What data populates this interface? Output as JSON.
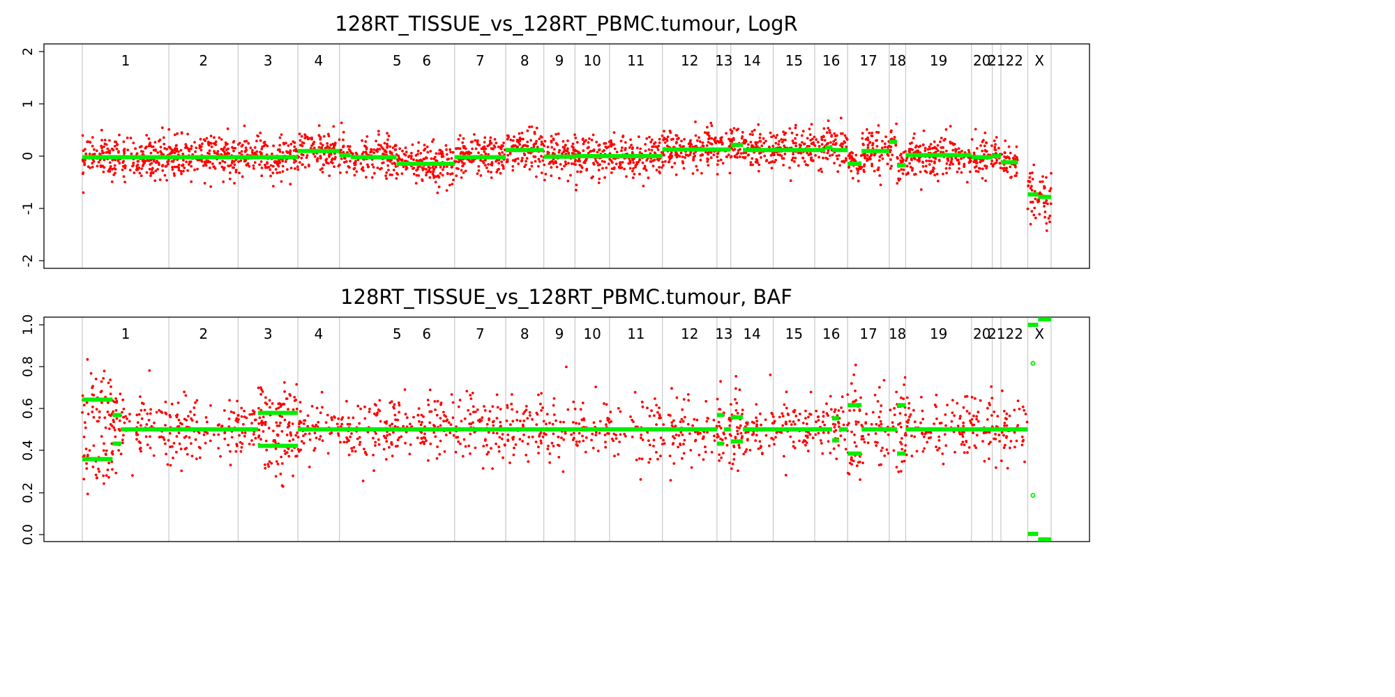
{
  "chart_data": [
    {
      "type": "scatter",
      "title": "128RT_TISSUE_vs_128RT_PBMC.tumour, LogR",
      "ylim": [
        -2.2,
        2.2
      ],
      "yticks": [
        "-2",
        "-1",
        "0",
        "1",
        "2"
      ],
      "grid": "vertical chromosome boundaries",
      "colors": {
        "raw": "#ff0000",
        "segment": "#00ee00",
        "boundary": "#cccccc"
      },
      "chromosomes": [
        {
          "label": "1",
          "start": 0,
          "end": 100
        },
        {
          "label": "2",
          "start": 100,
          "end": 180
        },
        {
          "label": "3",
          "start": 180,
          "end": 249
        },
        {
          "label": "4",
          "start": 249,
          "end": 297
        },
        {
          "label": "5",
          "start": 297,
          "end": 430
        },
        {
          "label": "6",
          "start": 430,
          "end": 430
        },
        {
          "label": "7",
          "start": 430,
          "end": 489
        },
        {
          "label": "8",
          "start": 489,
          "end": 533
        },
        {
          "label": "9",
          "start": 533,
          "end": 569
        },
        {
          "label": "10",
          "start": 569,
          "end": 609
        },
        {
          "label": "11",
          "start": 609,
          "end": 670
        },
        {
          "label": "12",
          "start": 670,
          "end": 733
        },
        {
          "label": "13",
          "start": 733,
          "end": 749
        },
        {
          "label": "14",
          "start": 749,
          "end": 798
        },
        {
          "label": "15",
          "start": 798,
          "end": 846
        },
        {
          "label": "16",
          "start": 846,
          "end": 884
        },
        {
          "label": "17",
          "start": 884,
          "end": 932
        },
        {
          "label": "18",
          "start": 932,
          "end": 951
        },
        {
          "label": "19",
          "start": 951,
          "end": 1027
        },
        {
          "label": "20",
          "start": 1027,
          "end": 1051
        },
        {
          "label": "21",
          "start": 1051,
          "end": 1061
        },
        {
          "label": "22",
          "start": 1061,
          "end": 1092
        },
        {
          "label": "X",
          "start": 1092,
          "end": 1119
        }
      ],
      "segments": [
        {
          "x0": 0,
          "x1": 100,
          "y": -0.02
        },
        {
          "x0": 100,
          "x1": 180,
          "y": -0.02
        },
        {
          "x0": 180,
          "x1": 249,
          "y": -0.02
        },
        {
          "x0": 249,
          "x1": 297,
          "y": 0.1
        },
        {
          "x0": 297,
          "x1": 310,
          "y": 0.02
        },
        {
          "x0": 310,
          "x1": 363,
          "y": -0.02
        },
        {
          "x0": 363,
          "x1": 430,
          "y": -0.15
        },
        {
          "x0": 430,
          "x1": 489,
          "y": -0.02
        },
        {
          "x0": 489,
          "x1": 533,
          "y": 0.12
        },
        {
          "x0": 533,
          "x1": 569,
          "y": -0.01
        },
        {
          "x0": 569,
          "x1": 609,
          "y": 0.0
        },
        {
          "x0": 609,
          "x1": 670,
          "y": 0.0
        },
        {
          "x0": 670,
          "x1": 733,
          "y": 0.13
        },
        {
          "x0": 733,
          "x1": 749,
          "y": 0.13
        },
        {
          "x0": 749,
          "x1": 763,
          "y": 0.22
        },
        {
          "x0": 763,
          "x1": 798,
          "y": 0.12
        },
        {
          "x0": 798,
          "x1": 846,
          "y": 0.12
        },
        {
          "x0": 846,
          "x1": 858,
          "y": 0.12
        },
        {
          "x0": 858,
          "x1": 866,
          "y": 0.17
        },
        {
          "x0": 866,
          "x1": 884,
          "y": 0.12
        },
        {
          "x0": 884,
          "x1": 900,
          "y": -0.15
        },
        {
          "x0": 900,
          "x1": 932,
          "y": 0.1
        },
        {
          "x0": 932,
          "x1": 941,
          "y": 0.28
        },
        {
          "x0": 941,
          "x1": 951,
          "y": -0.18
        },
        {
          "x0": 951,
          "x1": 1027,
          "y": 0.02
        },
        {
          "x0": 1027,
          "x1": 1051,
          "y": -0.02
        },
        {
          "x0": 1051,
          "x1": 1061,
          "y": 0.0
        },
        {
          "x0": 1061,
          "x1": 1080,
          "y": -0.12
        },
        {
          "x0": 1092,
          "x1": 1104,
          "y": -0.75
        },
        {
          "x0": 1104,
          "x1": 1119,
          "y": -0.8
        }
      ]
    },
    {
      "type": "scatter",
      "title": "128RT_TISSUE_vs_128RT_PBMC.tumour, BAF",
      "ylim": [
        -0.01,
        1.01
      ],
      "yticks": [
        "0.0",
        "0.2",
        "0.4",
        "0.6",
        "0.8",
        "1.0"
      ],
      "grid": "vertical chromosome boundaries",
      "colors": {
        "raw": "#ff0000",
        "segment": "#00ee00",
        "boundary": "#cccccc"
      },
      "segments": [
        {
          "x0": 0,
          "x1": 35,
          "y": 0.635
        },
        {
          "x0": 0,
          "x1": 35,
          "y": 0.365
        },
        {
          "x0": 35,
          "x1": 45,
          "y": 0.565
        },
        {
          "x0": 35,
          "x1": 45,
          "y": 0.435
        },
        {
          "x0": 45,
          "x1": 100,
          "y": 0.5
        },
        {
          "x0": 100,
          "x1": 180,
          "y": 0.5
        },
        {
          "x0": 180,
          "x1": 203,
          "y": 0.5
        },
        {
          "x0": 203,
          "x1": 249,
          "y": 0.575
        },
        {
          "x0": 203,
          "x1": 249,
          "y": 0.425
        },
        {
          "x0": 249,
          "x1": 733,
          "y": 0.5
        },
        {
          "x0": 733,
          "x1": 741,
          "y": 0.565
        },
        {
          "x0": 733,
          "x1": 741,
          "y": 0.435
        },
        {
          "x0": 741,
          "x1": 749,
          "y": 0.5
        },
        {
          "x0": 749,
          "x1": 763,
          "y": 0.555
        },
        {
          "x0": 749,
          "x1": 763,
          "y": 0.445
        },
        {
          "x0": 763,
          "x1": 866,
          "y": 0.5
        },
        {
          "x0": 866,
          "x1": 874,
          "y": 0.55
        },
        {
          "x0": 866,
          "x1": 874,
          "y": 0.45
        },
        {
          "x0": 874,
          "x1": 884,
          "y": 0.5
        },
        {
          "x0": 884,
          "x1": 900,
          "y": 0.61
        },
        {
          "x0": 884,
          "x1": 900,
          "y": 0.39
        },
        {
          "x0": 900,
          "x1": 941,
          "y": 0.5
        },
        {
          "x0": 941,
          "x1": 951,
          "y": 0.61
        },
        {
          "x0": 941,
          "x1": 951,
          "y": 0.39
        },
        {
          "x0": 951,
          "x1": 1092,
          "y": 0.5
        },
        {
          "x0": 1092,
          "x1": 1104,
          "y": 0.975
        },
        {
          "x0": 1092,
          "x1": 1104,
          "y": 0.025
        },
        {
          "x0": 1104,
          "x1": 1119,
          "y": 1.0
        },
        {
          "x0": 1104,
          "x1": 1119,
          "y": 0.0
        }
      ],
      "outlier_points": [
        {
          "x": 1098,
          "y": 0.8
        },
        {
          "x": 1098,
          "y": 0.2
        }
      ]
    }
  ]
}
